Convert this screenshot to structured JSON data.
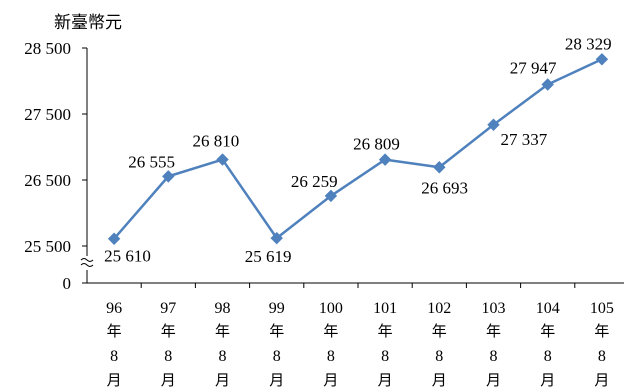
{
  "chart_data": {
    "type": "line",
    "unit_label": "新臺幣元",
    "categories": [
      [
        "96",
        "年",
        "8",
        "月"
      ],
      [
        "97",
        "年",
        "8",
        "月"
      ],
      [
        "98",
        "年",
        "8",
        "月"
      ],
      [
        "99",
        "年",
        "8",
        "月"
      ],
      [
        "100",
        "年",
        "8",
        "月"
      ],
      [
        "101",
        "年",
        "8",
        "月"
      ],
      [
        "102",
        "年",
        "8",
        "月"
      ],
      [
        "103",
        "年",
        "8",
        "月"
      ],
      [
        "104",
        "年",
        "8",
        "月"
      ],
      [
        "105",
        "年",
        "8",
        "月"
      ]
    ],
    "series": [
      {
        "values": [
          25610,
          26555,
          26810,
          25619,
          26259,
          26809,
          26693,
          27337,
          27947,
          28329
        ],
        "value_labels": [
          "25 610",
          "26 555",
          "26 810",
          "25 619",
          "26 259",
          "26 809",
          "26 693",
          "27 337",
          "27 947",
          "28 329"
        ],
        "color": "#4f81bd",
        "marker": "diamond"
      }
    ],
    "y_ticks": [
      {
        "value": 0,
        "label": "0"
      },
      {
        "value": 25500,
        "label": "25 500"
      },
      {
        "value": 26500,
        "label": "26 500"
      },
      {
        "value": 27500,
        "label": "27 500"
      },
      {
        "value": 28500,
        "label": "28 500"
      }
    ],
    "ylim": [
      25500,
      28500
    ],
    "axis_break": true,
    "grid": false,
    "legend": "none"
  }
}
